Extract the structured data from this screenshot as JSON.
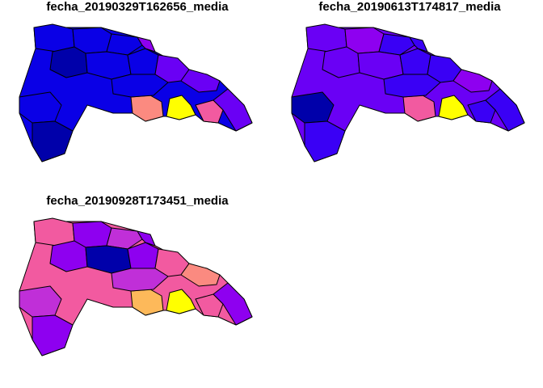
{
  "panels": [
    {
      "title": "fecha_20190329T162656_media"
    },
    {
      "title": "fecha_20190613T174817_media"
    },
    {
      "title": "fecha_20190928T173451_media"
    }
  ],
  "colors": {
    "navy": "#0000aa",
    "blue": "#0a00e6",
    "blue_violet": "#3a00f5",
    "violet": "#6a00f5",
    "purple": "#8e00f0",
    "magenta": "#c02fd8",
    "pink": "#f25aa0",
    "salmon": "#fb8a80",
    "orange": "#fdb95a",
    "yellow": "#ffff00"
  },
  "panel_palettes": [
    [
      "blue",
      "blue",
      "navy",
      "blue",
      "blue",
      "blue",
      "purple",
      "violet",
      "violet",
      "salmon",
      "yellow",
      "pink",
      "violet",
      "blue",
      "blue",
      "navy"
    ],
    [
      "violet",
      "purple",
      "violet",
      "blue_violet",
      "violet",
      "blue_violet",
      "blue_violet",
      "blue_violet",
      "purple",
      "pink",
      "yellow",
      "blue_violet",
      "blue_violet",
      "blue_violet",
      "navy",
      "blue_violet"
    ],
    [
      "pink",
      "purple",
      "purple",
      "magenta",
      "navy",
      "purple",
      "purple",
      "pink",
      "salmon",
      "orange",
      "yellow",
      "pink",
      "purple",
      "magenta",
      "magenta",
      "purple"
    ]
  ]
}
